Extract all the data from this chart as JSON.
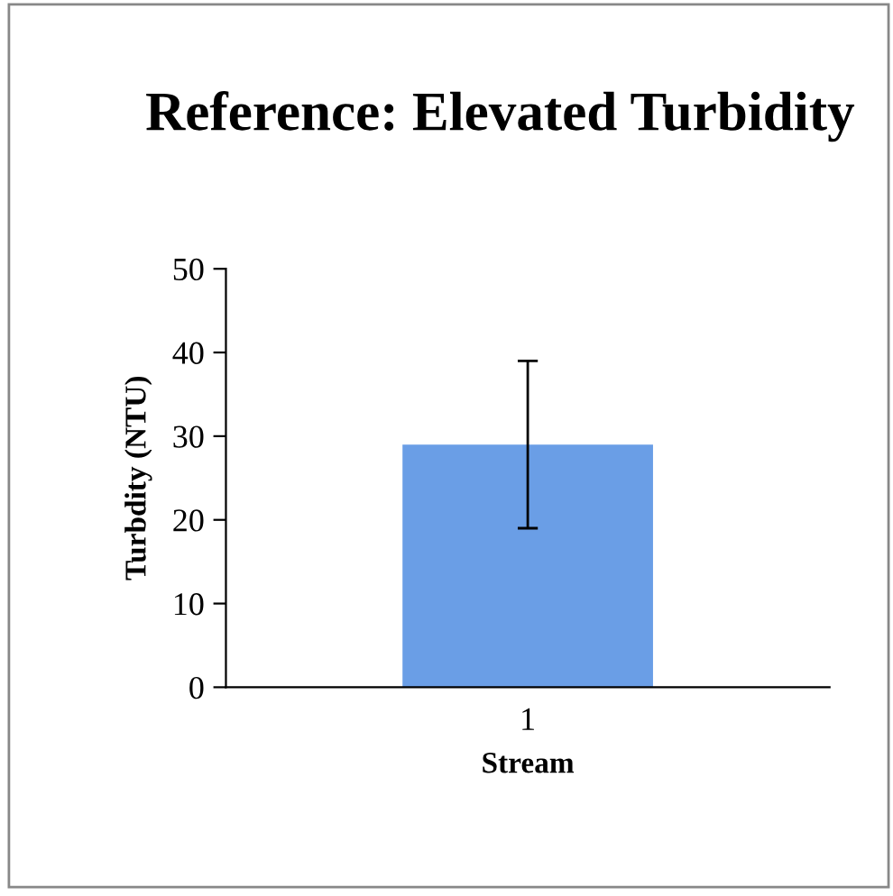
{
  "chart_data": {
    "type": "bar",
    "title": "Reference: Elevated Turbidity",
    "xlabel": "Stream",
    "ylabel": "Turbdity (NTU)",
    "categories": [
      "1"
    ],
    "values": [
      29
    ],
    "errors": [
      10
    ],
    "color": "#6a9ee6",
    "ylim": [
      0,
      50
    ],
    "yticks": [
      0,
      10,
      20,
      30,
      40,
      50
    ],
    "grid": false,
    "legend": false
  }
}
